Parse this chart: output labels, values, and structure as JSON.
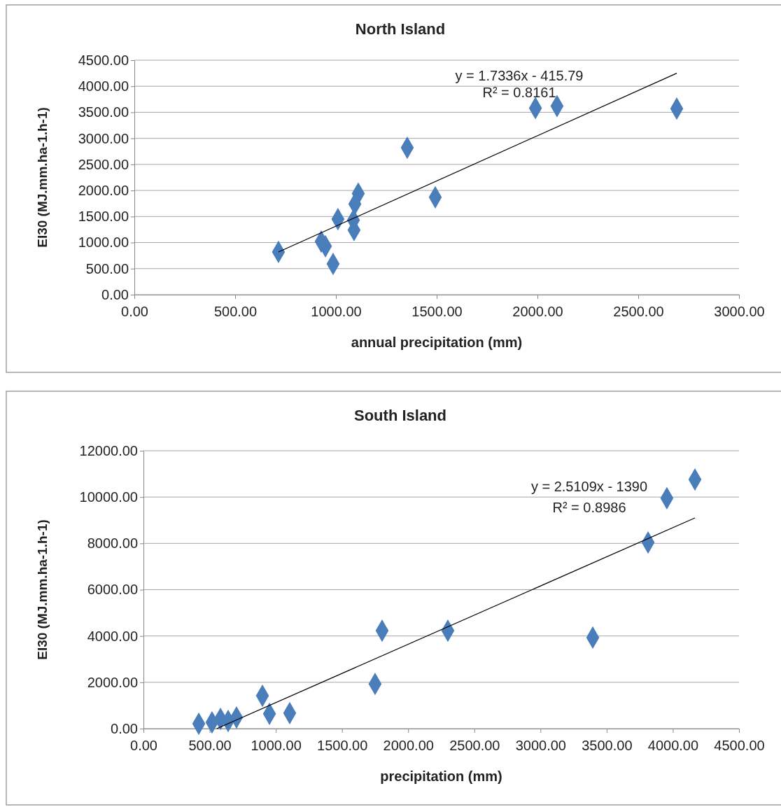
{
  "chart_data": [
    {
      "type": "scatter",
      "title": "North Island",
      "xlabel": "annual precipitation (mm)",
      "ylabel": "EI30 (MJ.mm.ha-1.h-1)",
      "xlim": [
        0,
        3000
      ],
      "xticks": [
        {
          "value": 0,
          "label": "0.00"
        },
        {
          "value": 500,
          "label": "500.00"
        },
        {
          "value": 1000,
          "label": "1000.00"
        },
        {
          "value": 1500,
          "label": "1500.00"
        },
        {
          "value": 2000,
          "label": "2000.00"
        },
        {
          "value": 2500,
          "label": "2500.00"
        },
        {
          "value": 3000,
          "label": "3000.00"
        }
      ],
      "ylim": [
        0,
        4500
      ],
      "yticks": [
        {
          "value": 0,
          "label": "0.00"
        },
        {
          "value": 500,
          "label": "500.00"
        },
        {
          "value": 1000,
          "label": "1000.00"
        },
        {
          "value": 1500,
          "label": "1500.00"
        },
        {
          "value": 2000,
          "label": "2000.00"
        },
        {
          "value": 2500,
          "label": "2500.00"
        },
        {
          "value": 3000,
          "label": "3000.00"
        },
        {
          "value": 3500,
          "label": "3500.00"
        },
        {
          "value": 4000,
          "label": "4000.00"
        },
        {
          "value": 4500,
          "label": "4500.00"
        }
      ],
      "grid": "y",
      "series": [
        {
          "type": "scatter",
          "marker": "diamond",
          "color": "#4a7ebb",
          "x": [
            715,
            927,
            948,
            986,
            1010,
            1087,
            1090,
            1094,
            1111,
            1354,
            1493,
            1990,
            2097,
            2691
          ],
          "values": [
            820,
            1020,
            930,
            590,
            1450,
            1430,
            1240,
            1740,
            1940,
            2820,
            1870,
            3580,
            3620,
            3570
          ]
        },
        {
          "type": "line",
          "marker": "none",
          "line_style": "solid",
          "color": "#000000",
          "x": [
            715,
            2691
          ],
          "values": [
            820,
            4250
          ]
        }
      ],
      "annotations": [
        "y = 1.7336x - 415.79",
        "R² = 0.8161"
      ]
    },
    {
      "type": "scatter",
      "title": "South Island",
      "xlabel": "precipitation (mm)",
      "ylabel": "EI30 (MJ.mm.ha-1.h-1)",
      "xlim": [
        0,
        4500
      ],
      "xticks": [
        {
          "value": 0,
          "label": "0.00"
        },
        {
          "value": 500,
          "label": "500.00"
        },
        {
          "value": 1000,
          "label": "1000.00"
        },
        {
          "value": 1500,
          "label": "1500.00"
        },
        {
          "value": 2000,
          "label": "2000.00"
        },
        {
          "value": 2500,
          "label": "2500.00"
        },
        {
          "value": 3000,
          "label": "3000.00"
        },
        {
          "value": 3500,
          "label": "3500.00"
        },
        {
          "value": 4000,
          "label": "4000.00"
        },
        {
          "value": 4500,
          "label": "4500.00"
        }
      ],
      "ylim": [
        0,
        12000
      ],
      "yticks": [
        {
          "value": 0,
          "label": "0.00"
        },
        {
          "value": 2000,
          "label": "2000.00"
        },
        {
          "value": 4000,
          "label": "4000.00"
        },
        {
          "value": 6000,
          "label": "6000.00"
        },
        {
          "value": 8000,
          "label": "8000.00"
        },
        {
          "value": 10000,
          "label": "10000.00"
        },
        {
          "value": 12000,
          "label": "12000.00"
        }
      ],
      "grid": "y",
      "series": [
        {
          "type": "scatter",
          "marker": "diamond",
          "color": "#4a7ebb",
          "x": [
            418,
            518,
            582,
            640,
            703,
            899,
            952,
            1105,
            1750,
            1803,
            2300,
            3395,
            3813,
            3955,
            4167
          ],
          "values": [
            210,
            270,
            420,
            330,
            480,
            1420,
            640,
            670,
            1930,
            4230,
            4230,
            3930,
            8040,
            9950,
            10760
          ]
        },
        {
          "type": "line",
          "marker": "none",
          "line_style": "solid",
          "color": "#000000",
          "x": [
            554,
            4167
          ],
          "values": [
            0,
            9100
          ]
        }
      ],
      "annotations": [
        "y = 2.5109x - 1390",
        "R² = 0.8986"
      ]
    }
  ]
}
